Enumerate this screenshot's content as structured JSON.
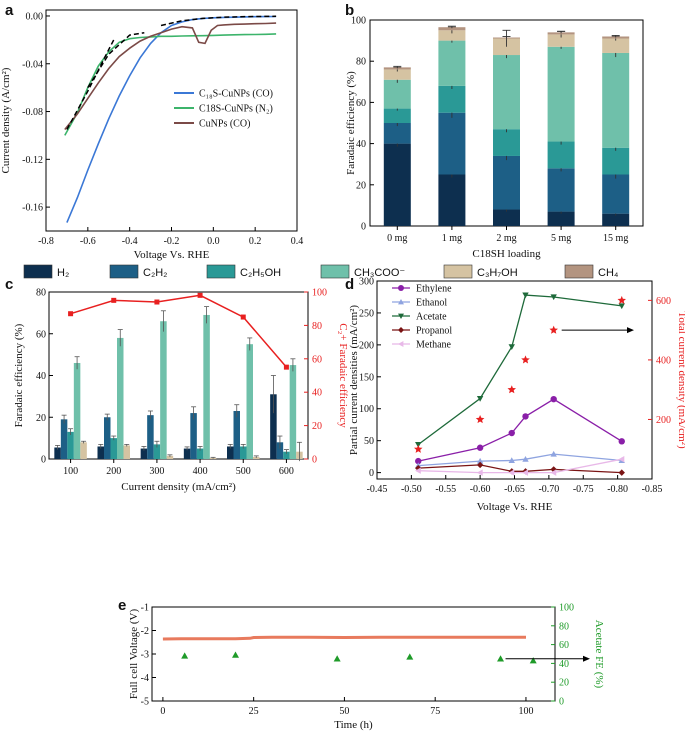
{
  "panels": {
    "a": "a",
    "b": "b",
    "c": "c",
    "d": "d",
    "e": "e"
  },
  "colors": {
    "H2": "#0d2f4f",
    "C2H2": "#1d5f86",
    "C2H5OH": "#2a9996",
    "CH3COO": "#6fc0aa",
    "C3H7OH": "#d5c3a2",
    "CH4": "#b39480",
    "blue": "#3b78d6",
    "green": "#3cb46b",
    "brown": "#7b4a47",
    "red": "#e82020",
    "orange": "#e87a5d",
    "feGreen": "#1f9b29"
  },
  "species_legend": [
    {
      "label": "H₂",
      "color_key": "H2"
    },
    {
      "label": "C₂H₂",
      "color_key": "C2H2"
    },
    {
      "label": "C₂H₅OH",
      "color_key": "C2H5OH"
    },
    {
      "label": "CH₃COO⁻",
      "color_key": "CH3COO"
    },
    {
      "label": "C₃H₇OH",
      "color_key": "C3H7OH"
    },
    {
      "label": "CH₄",
      "color_key": "CH4"
    }
  ],
  "chart_data": [
    {
      "id": "a",
      "type": "line",
      "xlabel": "Voltage Vs. RHE",
      "ylabel": "Current density (A/cm²)",
      "xlim": [
        -0.8,
        0.4
      ],
      "ylim": [
        -0.18,
        0.005
      ],
      "xticks": [
        "-0.8",
        "-0.6",
        "-0.4",
        "-0.2",
        "0.0",
        "0.2",
        "0.4"
      ],
      "xtick_values": [
        -0.8,
        -0.6,
        -0.4,
        -0.2,
        0.0,
        0.2,
        0.4
      ],
      "yticks": [
        "0.00",
        "-0.04",
        "-0.08",
        "-0.12",
        "-0.16"
      ],
      "ytick_values": [
        0.0,
        -0.04,
        -0.08,
        -0.12,
        -0.16
      ],
      "series": [
        {
          "name": "C₁₈S-CuNPs (CO)",
          "color_key": "blue",
          "x": [
            -0.7,
            -0.65,
            -0.6,
            -0.55,
            -0.5,
            -0.45,
            -0.4,
            -0.35,
            -0.3,
            -0.25,
            -0.2,
            -0.15,
            -0.1,
            -0.05,
            0.0,
            0.05,
            0.1,
            0.15,
            0.2,
            0.25,
            0.3
          ],
          "y": [
            -0.173,
            -0.152,
            -0.129,
            -0.107,
            -0.086,
            -0.067,
            -0.05,
            -0.035,
            -0.023,
            -0.014,
            -0.008,
            -0.005,
            -0.003,
            -0.002,
            -0.0015,
            -0.0012,
            -0.001,
            -0.0008,
            -0.0006,
            -0.0005,
            -0.0004
          ]
        },
        {
          "name": "C18S-CuNPs (N₂)",
          "color_key": "green",
          "x": [
            -0.71,
            -0.65,
            -0.6,
            -0.55,
            -0.5,
            -0.45,
            -0.4,
            -0.35,
            -0.3,
            -0.25,
            -0.2,
            -0.15,
            -0.1,
            -0.05,
            0.0,
            0.05,
            0.1,
            0.15,
            0.2,
            0.25,
            0.3
          ],
          "y": [
            -0.1,
            -0.081,
            -0.06,
            -0.042,
            -0.03,
            -0.022,
            -0.019,
            -0.018,
            -0.0175,
            -0.017,
            -0.017,
            -0.0168,
            -0.0166,
            -0.0165,
            -0.0163,
            -0.016,
            -0.0158,
            -0.0156,
            -0.0155,
            -0.0153,
            -0.015
          ]
        },
        {
          "name": "CuNPs (CO)",
          "color_key": "brown",
          "x": [
            -0.71,
            -0.65,
            -0.6,
            -0.55,
            -0.5,
            -0.45,
            -0.4,
            -0.35,
            -0.3,
            -0.25,
            -0.2,
            -0.15,
            -0.1,
            -0.07,
            -0.04,
            -0.01,
            0.02,
            0.05,
            0.1,
            0.15,
            0.2,
            0.25,
            0.3
          ],
          "y": [
            -0.095,
            -0.082,
            -0.069,
            -0.056,
            -0.044,
            -0.034,
            -0.027,
            -0.021,
            -0.017,
            -0.014,
            -0.011,
            -0.009,
            -0.01,
            -0.022,
            -0.023,
            -0.012,
            -0.008,
            -0.0075,
            -0.007,
            -0.0068,
            -0.0065,
            -0.0063,
            -0.006
          ]
        }
      ],
      "fits": [
        {
          "x": [
            -0.7,
            -0.6,
            -0.5,
            -0.47
          ],
          "y": [
            -0.095,
            -0.063,
            -0.028,
            -0.018
          ]
        },
        {
          "x": [
            -0.6,
            -0.5,
            -0.4,
            -0.33
          ],
          "y": [
            -0.06,
            -0.032,
            -0.016,
            -0.014
          ]
        },
        {
          "x": [
            -0.25,
            -0.15,
            -0.05,
            0.05,
            0.15,
            0.3
          ],
          "y": [
            -0.008,
            -0.004,
            -0.002,
            -0.001,
            -0.0005,
            -0.0003
          ]
        }
      ]
    },
    {
      "id": "b",
      "type": "bar",
      "stacked": true,
      "xlabel": "C18SH loading",
      "ylabel": "Faradaic efficiency (%)",
      "ylim": [
        0,
        100
      ],
      "yticks": [
        "0",
        "20",
        "40",
        "60",
        "80",
        "100"
      ],
      "ytick_values": [
        0,
        20,
        40,
        60,
        80,
        100
      ],
      "categories": [
        "0 mg",
        "1 mg",
        "2 mg",
        "5 mg",
        "15 mg"
      ],
      "series": [
        {
          "name": "H₂",
          "color_key": "H2",
          "values": [
            40,
            25,
            8,
            7,
            6
          ],
          "err": [
            1.5,
            1.5,
            1.0,
            1.0,
            1.0
          ]
        },
        {
          "name": "C₂H₂",
          "color_key": "C2H2",
          "values": [
            10,
            30,
            26,
            21,
            19
          ],
          "err": [
            1.5,
            2.5,
            2.0,
            1.5,
            2.0
          ]
        },
        {
          "name": "C₂H₅OH",
          "color_key": "C2H5OH",
          "values": [
            7,
            13,
            13,
            13,
            13
          ],
          "err": [
            1.0,
            1.5,
            1.5,
            1.5,
            1.5
          ]
        },
        {
          "name": "CH₃COO⁻",
          "color_key": "CH3COO",
          "values": [
            14,
            22,
            36,
            46,
            46
          ],
          "err": [
            1.5,
            1.0,
            1.5,
            1.0,
            2.0
          ]
        },
        {
          "name": "C₃H₇OH",
          "color_key": "C3H7OH",
          "values": [
            5,
            5,
            8,
            6,
            7
          ],
          "err": [
            1.0,
            1.5,
            4.0,
            1.5,
            1.0
          ]
        },
        {
          "name": "CH₄",
          "color_key": "CH4",
          "values": [
            1,
            1.5,
            0.5,
            1,
            1
          ],
          "err": [
            0.5,
            0.5,
            0.5,
            0.5,
            0.5
          ]
        }
      ]
    },
    {
      "id": "c",
      "type": "bar",
      "xlabel": "Current density (mA/cm²)",
      "ylabel": "Faradaic efficiency (%)",
      "y2label": "C₂+ Faradaic efficiency",
      "ylim": [
        0,
        80
      ],
      "y2lim": [
        0,
        100
      ],
      "yticks": [
        "0",
        "20",
        "40",
        "60",
        "80"
      ],
      "ytick_values": [
        0,
        20,
        40,
        60,
        80
      ],
      "y2ticks": [
        "0",
        "20",
        "40",
        "60",
        "80",
        "100"
      ],
      "y2tick_values": [
        0,
        20,
        40,
        60,
        80,
        100
      ],
      "categories": [
        "100",
        "200",
        "300",
        "400",
        "500",
        "600"
      ],
      "series": [
        {
          "name": "H₂",
          "color_key": "H2",
          "values": [
            5.5,
            6,
            5,
            5,
            6,
            31
          ],
          "err": [
            1,
            1,
            1,
            0.8,
            1,
            9
          ]
        },
        {
          "name": "C₂H₂",
          "color_key": "C2H2",
          "values": [
            19,
            20,
            21,
            22,
            23,
            8
          ],
          "err": [
            2,
            1.5,
            2,
            3,
            3,
            3
          ]
        },
        {
          "name": "C₂H₅OH",
          "color_key": "C2H5OH",
          "values": [
            13,
            10,
            7,
            5,
            6,
            3.5
          ],
          "err": [
            1.5,
            1,
            1.5,
            1,
            1,
            1
          ]
        },
        {
          "name": "CH₃COO⁻",
          "color_key": "CH3COO",
          "values": [
            46,
            58,
            66,
            69,
            55,
            45
          ],
          "err": [
            3,
            4,
            5,
            4,
            3,
            3
          ]
        },
        {
          "name": "C₃H₇OH",
          "color_key": "C3H7OH",
          "values": [
            8,
            6.5,
            1.5,
            0.5,
            1,
            3.5
          ],
          "err": [
            0.5,
            0.5,
            0.5,
            0.3,
            0.5,
            4.5
          ]
        }
      ],
      "c2_series": {
        "name": "C₂+ FE",
        "color_key": "red",
        "values": [
          87,
          95,
          94,
          98,
          85,
          55
        ]
      }
    },
    {
      "id": "d",
      "type": "scatter",
      "xlabel": "Voltage Vs. RHE",
      "ylabel": "Partial current densities (mA/cm²)",
      "y2label": "Total current density (mA/cm²)",
      "xlim": [
        -0.45,
        -0.85
      ],
      "ylim": [
        -10,
        300
      ],
      "y2lim": [
        0,
        665
      ],
      "xticks": [
        "-0.45",
        "-0.50",
        "-0.55",
        "-0.60",
        "-0.65",
        "-0.70",
        "-0.75",
        "-0.80",
        "-0.85"
      ],
      "xtick_values": [
        -0.45,
        -0.5,
        -0.55,
        -0.6,
        -0.65,
        -0.7,
        -0.75,
        -0.8,
        -0.85
      ],
      "yticks": [
        "0",
        "50",
        "100",
        "150",
        "200",
        "250",
        "300"
      ],
      "ytick_values": [
        0,
        50,
        100,
        150,
        200,
        250,
        300
      ],
      "y2ticks": [
        "200",
        "400",
        "600"
      ],
      "y2tick_values": [
        200,
        400,
        600
      ],
      "x": [
        -0.51,
        -0.6,
        -0.646,
        -0.666,
        -0.707,
        -0.806
      ],
      "series": [
        {
          "name": "Ethylene",
          "color_key": "ethylene",
          "color": "#8a1fa8",
          "marker": "circle",
          "values": [
            18,
            39,
            62,
            88,
            115,
            49
          ]
        },
        {
          "name": "Ethanol",
          "color_key": "ethanol",
          "color": "#8fa4e0",
          "marker": "triangle-up",
          "values": [
            11,
            18,
            19,
            21,
            29,
            19
          ]
        },
        {
          "name": "Acetate",
          "color_key": "acetate",
          "color": "#1e6a3a",
          "marker": "triangle-down",
          "values": [
            44,
            116,
            197,
            278,
            275,
            261
          ]
        },
        {
          "name": "Propanol",
          "color_key": "propanol",
          "color": "#7a1414",
          "marker": "diamond",
          "values": [
            7,
            12,
            2,
            2,
            5,
            0
          ]
        },
        {
          "name": "Methane",
          "color_key": "methane",
          "color": "#e8b8e8",
          "marker": "triangle-left",
          "values": [
            3,
            0,
            0,
            0,
            0,
            21
          ]
        }
      ],
      "total_series": {
        "name": "Total",
        "color_key": "red",
        "x": [
          -0.51,
          -0.6,
          -0.646,
          -0.666,
          -0.707,
          -0.806
        ],
        "values": [
          100,
          200,
          300,
          400,
          500,
          600
        ]
      }
    },
    {
      "id": "e",
      "type": "line",
      "xlabel": "Time (h)",
      "ylabel": "Full cell Voltage (V)",
      "y2label": "Acetate FE (%)",
      "xlim": [
        -3,
        108
      ],
      "ylim": [
        -5,
        -1
      ],
      "y2lim": [
        0,
        100
      ],
      "xticks": [
        "0",
        "25",
        "50",
        "75",
        "100"
      ],
      "xtick_values": [
        0,
        25,
        50,
        75,
        100
      ],
      "yticks": [
        "-1",
        "-2",
        "-3",
        "-4",
        "-5"
      ],
      "ytick_values": [
        -1,
        -2,
        -3,
        -4,
        -5
      ],
      "y2ticks": [
        "0",
        "20",
        "40",
        "60",
        "80",
        "100"
      ],
      "y2tick_values": [
        0,
        20,
        40,
        60,
        80,
        100
      ],
      "voltage": {
        "x": [
          0,
          5,
          10,
          15,
          20,
          24,
          25,
          30,
          40,
          50,
          60,
          70,
          80,
          90,
          100
        ],
        "y": [
          -2.36,
          -2.35,
          -2.35,
          -2.35,
          -2.35,
          -2.33,
          -2.3,
          -2.29,
          -2.29,
          -2.3,
          -2.29,
          -2.29,
          -2.29,
          -2.29,
          -2.29
        ]
      },
      "fe": {
        "x": [
          6,
          20,
          48,
          68,
          93,
          102
        ],
        "y": [
          48,
          49,
          45,
          47,
          45,
          43
        ]
      }
    }
  ]
}
